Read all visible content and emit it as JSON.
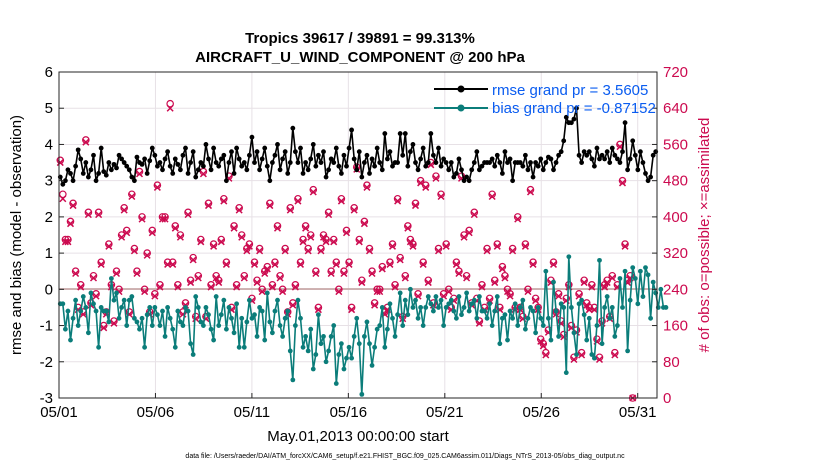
{
  "chart_data": {
    "type": "line",
    "title": "Tropics 39617 / 39891 = 99.313%",
    "subtitle": "AIRCRAFT_U_WIND_COMPONENT @ 200 hPa",
    "xlabel": "May.01,2013 00:00:00 start",
    "ylabel": "rmse and bias (model - observation)",
    "ylabel_right": "# of obs: o=possible; ×=assimilated",
    "footer": "data file: /Users/raeder/DAI/ATM_forcXX/CAM6_setup/f.e21.FHIST_BGC.f09_025.CAM6assim.011/Diags_NTrS_2013-05/obs_diag_output.nc",
    "x_ticks": [
      "05/01",
      "05/06",
      "05/11",
      "05/16",
      "05/21",
      "05/26",
      "05/31"
    ],
    "x_tick_days": [
      1,
      6,
      11,
      16,
      21,
      26,
      31
    ],
    "xlim": [
      1,
      32
    ],
    "ylim": [
      -3,
      6
    ],
    "y_ticks": [
      "-3",
      "-2",
      "-1",
      "0",
      "1",
      "2",
      "3",
      "4",
      "5",
      "6"
    ],
    "y2lim": [
      0,
      720
    ],
    "y2_ticks": [
      "0",
      "80",
      "160",
      "240",
      "320",
      "400",
      "480",
      "560",
      "640",
      "720"
    ],
    "grid": true,
    "legend_position": "top-right",
    "colors": {
      "rmse": "#000000",
      "bias": "#0b7d7a",
      "counts": "#cc0a4f",
      "zero_line": "#c8a8a8",
      "legend_text": "#0a5cf0"
    },
    "series": [
      {
        "name": "rmse grand pr = 3.5605",
        "axis": "left",
        "values": [
          3.1,
          2.9,
          3.0,
          3.3,
          3.2,
          3.0,
          3.4,
          3.85,
          3.6,
          3.2,
          3.5,
          3.1,
          3.3,
          3.7,
          3.0,
          3.2,
          3.9,
          3.25,
          3.15,
          3.5,
          3.3,
          3.45,
          3.35,
          3.7,
          3.6,
          3.5,
          3.4,
          3.3,
          3.1,
          3.0,
          3.65,
          3.5,
          3.45,
          3.6,
          3.2,
          3.55,
          3.9,
          3.7,
          3.4,
          3.5,
          3.3,
          3.6,
          3.8,
          3.4,
          3.2,
          3.6,
          3.45,
          3.3,
          3.7,
          3.9,
          3.2,
          3.5,
          3.8,
          3.1,
          3.3,
          3.5,
          3.4,
          4.0,
          3.6,
          3.3,
          3.9,
          3.5,
          3.4,
          3.6,
          3.7,
          3.0,
          3.5,
          3.8,
          3.2,
          3.9,
          3.6,
          3.4,
          3.5,
          3.3,
          3.7,
          4.2,
          3.5,
          3.8,
          3.3,
          3.6,
          3.9,
          3.4,
          3.0,
          3.5,
          3.7,
          4.0,
          3.3,
          3.6,
          3.8,
          3.2,
          3.5,
          4.45,
          3.8,
          3.5,
          3.9,
          3.2,
          3.5,
          3.3,
          3.6,
          4.0,
          3.4,
          3.7,
          3.5,
          3.8,
          3.1,
          3.3,
          3.6,
          3.5,
          3.9,
          3.4,
          3.2,
          3.7,
          3.4,
          3.9,
          4.4,
          3.6,
          3.3,
          3.8,
          3.1,
          3.5,
          3.7,
          3.2,
          3.6,
          3.4,
          3.9,
          3.5,
          3.3,
          4.3,
          3.6,
          3.8,
          3.4,
          3.5,
          3.5,
          4.3,
          3.7,
          4.3,
          3.4,
          3.8,
          4.0,
          3.5,
          3.3,
          3.6,
          3.9,
          3.4,
          3.5,
          4.3,
          3.7,
          3.5,
          3.9,
          3.4,
          3.6,
          3.5,
          3.3,
          3.5,
          3.1,
          3.2,
          3.6,
          3.3,
          3.0,
          3.1,
          3.0,
          3.3,
          3.5,
          3.8,
          3.3,
          3.4,
          3.5,
          3.5,
          3.5,
          3.6,
          3.4,
          3.7,
          3.5,
          3.2,
          3.8,
          3.5,
          3.6,
          3.0,
          3.5,
          3.5,
          3.5,
          3.4,
          3.7,
          3.3,
          3.5,
          3.1,
          3.5,
          3.4,
          3.6,
          3.3,
          3.5,
          3.65,
          3.6,
          3.3,
          3.5,
          3.7,
          3.8,
          4.1,
          4.75,
          4.6,
          4.6,
          4.7,
          5.0,
          3.7,
          3.5,
          3.8,
          3.7,
          3.8,
          3.6,
          3.4,
          3.9,
          3.6,
          3.7,
          3.6,
          3.8,
          3.5,
          3.9,
          3.7,
          3.6,
          3.5,
          3.8,
          4.6,
          3.3,
          3.6,
          4.1,
          3.7,
          3.3,
          3.8,
          3.5,
          3.2,
          3.0,
          3.1,
          3.7,
          3.8
        ]
      },
      {
        "name": "bias grand pr = -0.87152",
        "axis": "left",
        "values": [
          -0.4,
          -0.4,
          -1.1,
          -0.6,
          -1.4,
          -0.8,
          -0.3,
          -1.0,
          -0.6,
          -0.2,
          -0.5,
          -1.2,
          -0.1,
          -0.4,
          -0.6,
          -1.6,
          -0.5,
          -0.6,
          -0.6,
          -0.9,
          0.3,
          -0.3,
          -0.1,
          -0.8,
          -0.5,
          -0.3,
          -1.0,
          -0.3,
          -0.2,
          -0.8,
          -0.9,
          -1.1,
          -0.8,
          -1.6,
          -0.7,
          -0.5,
          -1.0,
          -0.5,
          -0.7,
          -1.0,
          -0.6,
          -1.3,
          -0.5,
          -0.8,
          -1.1,
          -1.6,
          -0.6,
          -0.9,
          -1.0,
          -0.5,
          -0.6,
          -1.5,
          -1.8,
          -0.2,
          -0.5,
          -0.9,
          -1.0,
          -0.5,
          -0.7,
          -1.1,
          -1.4,
          -0.2,
          -1.0,
          -0.7,
          -0.3,
          -1.1,
          -0.5,
          -0.8,
          -1.2,
          -0.4,
          -1.6,
          -0.8,
          -1.6,
          -0.9,
          -0.3,
          -0.8,
          -0.7,
          -1.3,
          -0.5,
          -0.6,
          -1.4,
          -0.1,
          -0.9,
          -1.2,
          -0.6,
          -0.3,
          -1.0,
          -1.3,
          -0.8,
          -0.6,
          -1.7,
          -2.5,
          -1.0,
          -0.3,
          -0.8,
          -1.6,
          -1.3,
          -1.7,
          -1.1,
          -2.2,
          -1.8,
          -0.7,
          -1.5,
          -1.3,
          -2.0,
          -1.7,
          -1.3,
          -1.0,
          -2.6,
          -1.8,
          -1.5,
          -2.2,
          -1.9,
          -1.6,
          -1.9,
          -1.3,
          -0.8,
          -1.5,
          -2.9,
          -1.3,
          -0.9,
          -1.5,
          -2.1,
          -1.6,
          -1.1,
          -1.0,
          -0.5,
          -1.6,
          -1.1,
          -0.4,
          -0.8,
          -1.3,
          -0.7,
          -0.1,
          -1.0,
          -0.3,
          -0.7,
          0.0,
          -0.5,
          -0.3,
          -0.8,
          -0.5,
          -1.0,
          -0.5,
          -0.2,
          -0.4,
          -0.6,
          -0.2,
          -0.5,
          -0.3,
          -1.0,
          -0.5,
          -0.4,
          -0.3,
          -0.6,
          -0.8,
          -0.2,
          -0.7,
          -0.5,
          -0.1,
          -0.6,
          -0.4,
          -0.3,
          -0.8,
          -0.2,
          -0.6,
          -0.6,
          -0.8,
          -0.4,
          -1.0,
          -0.6,
          -0.2,
          -1.5,
          -0.8,
          -0.7,
          -1.4,
          -0.6,
          -0.8,
          -0.4,
          -1.0,
          -0.5,
          -0.3,
          -1.1,
          -0.8,
          -0.5,
          -0.6,
          -1.2,
          -0.5,
          -0.8,
          -1.0,
          0.5,
          -0.8,
          -1.4,
          0.2,
          -0.6,
          -1.3,
          -0.4,
          -0.5,
          -2.3,
          0.9,
          -0.5,
          -1.2,
          -1.8,
          -0.4,
          -0.3,
          -0.7,
          -1.4,
          -0.8,
          -1.8,
          -1.9,
          -1.0,
          0.8,
          -1.5,
          -0.5,
          -0.2,
          -0.8,
          -0.5,
          -1.3,
          -1.0,
          0.3,
          -0.5,
          0.5,
          -1.7,
          -0.3,
          0.6,
          0.3,
          -0.4,
          0.5,
          -0.2,
          0.6,
          0.4,
          -0.8,
          0.2,
          -0.1,
          -0.5,
          0.0,
          -0.5,
          -0.5
        ]
      }
    ],
    "counts": {
      "axis": "right",
      "possible": [
        525,
        450,
        350,
        350,
        390,
        430,
        280,
        200,
        250,
        190,
        570,
        410,
        210,
        270,
        230,
        410,
        300,
        160,
        190,
        340,
        250,
        170,
        280,
        240,
        360,
        420,
        370,
        190,
        450,
        330,
        280,
        500,
        400,
        240,
        320,
        190,
        370,
        230,
        470,
        250,
        400,
        400,
        300,
        650,
        300,
        380,
        250,
        360,
        190,
        210,
        410,
        260,
        310,
        180,
        270,
        350,
        500,
        180,
        430,
        250,
        340,
        270,
        260,
        350,
        440,
        300,
        490,
        200,
        380,
        250,
        420,
        360,
        270,
        330,
        340,
        220,
        300,
        260,
        330,
        240,
        280,
        290,
        430,
        250,
        300,
        380,
        270,
        240,
        330,
        190,
        420,
        210,
        250,
        440,
        300,
        350,
        380,
        330,
        360,
        460,
        280,
        200,
        330,
        360,
        350,
        410,
        280,
        350,
        300,
        240,
        440,
        280,
        370,
        300,
        200,
        420,
        510,
        350,
        260,
        390,
        470,
        330,
        280,
        210,
        240,
        240,
        290,
        190,
        200,
        300,
        340,
        250,
        440,
        310,
        180,
        270,
        380,
        350,
        340,
        430,
        230,
        480,
        300,
        470,
        260,
        520,
        210,
        490,
        330,
        450,
        230,
        340,
        240,
        200,
        220,
        300,
        280,
        490,
        360,
        270,
        370,
        210,
        410,
        220,
        170,
        250,
        200,
        330,
        220,
        450,
        260,
        340,
        200,
        290,
        270,
        240,
        230,
        330,
        200,
        400,
        200,
        180,
        340,
        240,
        460,
        300,
        220,
        200,
        130,
        120,
        100,
        150,
        260,
        300,
        190,
        230,
        170,
        140,
        220,
        250,
        160,
        90,
        150,
        230,
        100,
        260,
        210,
        200,
        250,
        200,
        130,
        90,
        170,
        250,
        260,
        180,
        270,
        100,
        250,
        560,
        480,
        340,
        260,
        270,
        0
      ],
      "assimilated": [
        520,
        440,
        345,
        345,
        385,
        425,
        275,
        195,
        245,
        185,
        565,
        405,
        205,
        265,
        225,
        405,
        295,
        155,
        185,
        335,
        245,
        165,
        275,
        235,
        355,
        415,
        365,
        185,
        445,
        325,
        275,
        495,
        395,
        235,
        315,
        185,
        365,
        225,
        465,
        245,
        395,
        395,
        295,
        640,
        295,
        375,
        245,
        355,
        185,
        205,
        405,
        255,
        305,
        175,
        265,
        345,
        495,
        175,
        425,
        245,
        335,
        265,
        255,
        345,
        435,
        295,
        485,
        195,
        375,
        245,
        415,
        355,
        265,
        325,
        335,
        215,
        295,
        255,
        325,
        235,
        275,
        285,
        425,
        245,
        295,
        375,
        265,
        235,
        325,
        185,
        415,
        205,
        245,
        435,
        295,
        345,
        375,
        325,
        355,
        455,
        275,
        195,
        325,
        355,
        345,
        405,
        275,
        345,
        295,
        235,
        435,
        275,
        365,
        295,
        195,
        415,
        505,
        345,
        255,
        385,
        465,
        325,
        275,
        205,
        235,
        235,
        285,
        185,
        195,
        295,
        335,
        245,
        435,
        305,
        175,
        265,
        375,
        345,
        335,
        425,
        225,
        475,
        295,
        465,
        255,
        515,
        205,
        485,
        325,
        445,
        225,
        335,
        235,
        195,
        215,
        295,
        275,
        485,
        355,
        265,
        365,
        205,
        405,
        215,
        165,
        245,
        195,
        325,
        215,
        445,
        255,
        335,
        195,
        285,
        265,
        235,
        225,
        325,
        195,
        395,
        195,
        175,
        335,
        235,
        455,
        295,
        215,
        195,
        125,
        115,
        95,
        145,
        255,
        295,
        185,
        225,
        165,
        135,
        215,
        245,
        155,
        85,
        145,
        225,
        95,
        255,
        205,
        195,
        245,
        195,
        125,
        85,
        165,
        245,
        255,
        175,
        265,
        95,
        245,
        555,
        475,
        335,
        255,
        265,
        0
      ]
    }
  }
}
